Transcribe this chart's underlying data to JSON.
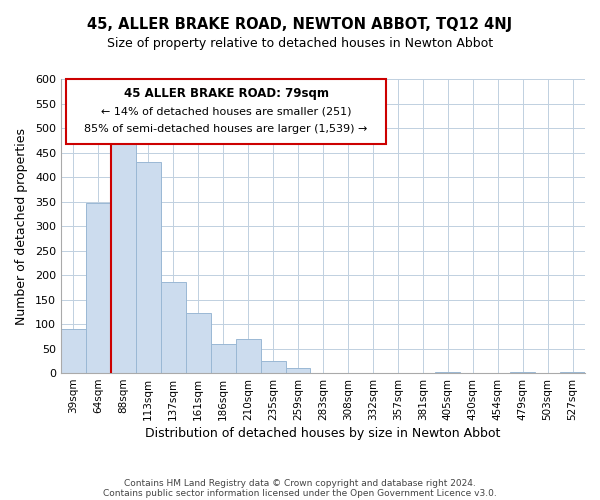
{
  "title": "45, ALLER BRAKE ROAD, NEWTON ABBOT, TQ12 4NJ",
  "subtitle": "Size of property relative to detached houses in Newton Abbot",
  "xlabel": "Distribution of detached houses by size in Newton Abbot",
  "ylabel": "Number of detached properties",
  "bar_color": "#ccdcee",
  "bar_edge_color": "#9ab8d4",
  "categories": [
    "39sqm",
    "64sqm",
    "88sqm",
    "113sqm",
    "137sqm",
    "161sqm",
    "186sqm",
    "210sqm",
    "235sqm",
    "259sqm",
    "283sqm",
    "308sqm",
    "332sqm",
    "357sqm",
    "381sqm",
    "405sqm",
    "430sqm",
    "454sqm",
    "479sqm",
    "503sqm",
    "527sqm"
  ],
  "values": [
    90,
    348,
    470,
    430,
    185,
    122,
    60,
    70,
    25,
    10,
    0,
    0,
    0,
    0,
    0,
    3,
    0,
    0,
    3,
    0,
    3
  ],
  "ylim": [
    0,
    600
  ],
  "yticks": [
    0,
    50,
    100,
    150,
    200,
    250,
    300,
    350,
    400,
    450,
    500,
    550,
    600
  ],
  "vline_color": "#cc0000",
  "annotation_title": "45 ALLER BRAKE ROAD: 79sqm",
  "annotation_line1": "← 14% of detached houses are smaller (251)",
  "annotation_line2": "85% of semi-detached houses are larger (1,539) →",
  "footer_line1": "Contains HM Land Registry data © Crown copyright and database right 2024.",
  "footer_line2": "Contains public sector information licensed under the Open Government Licence v3.0.",
  "background_color": "#ffffff",
  "grid_color": "#c0d0e0"
}
